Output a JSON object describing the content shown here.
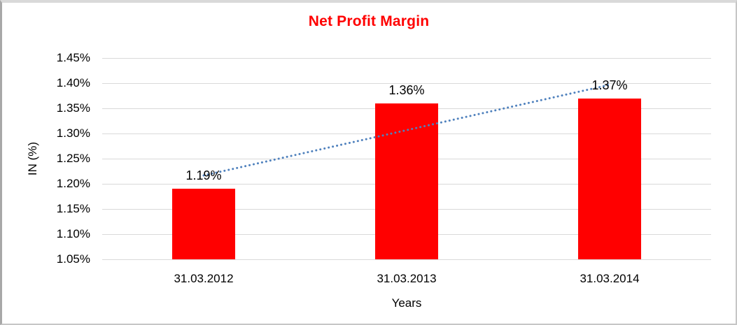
{
  "chart_data": {
    "type": "bar",
    "title": "Net Profit Margin",
    "title_color": "#ff0000",
    "categories": [
      "31.03.2012",
      "31.03.2013",
      "31.03.2014"
    ],
    "values": [
      1.19,
      1.36,
      1.37
    ],
    "data_labels": [
      "1.19%",
      "1.36%",
      "1.37%"
    ],
    "bar_color": "#ff0000",
    "xlabel": "Years",
    "ylabel": "IN (%)",
    "ylim": [
      1.05,
      1.45
    ],
    "ytick_labels": [
      "1.45%",
      "1.40%",
      "1.35%",
      "1.30%",
      "1.25%",
      "1.20%",
      "1.15%",
      "1.10%",
      "1.05%"
    ],
    "grid": true,
    "gridline_color": "#d9d9d9",
    "text_color": "#000000",
    "trendline": {
      "type": "linear",
      "style": "dotted",
      "color": "#4f81bd"
    },
    "legend_position": "none"
  }
}
